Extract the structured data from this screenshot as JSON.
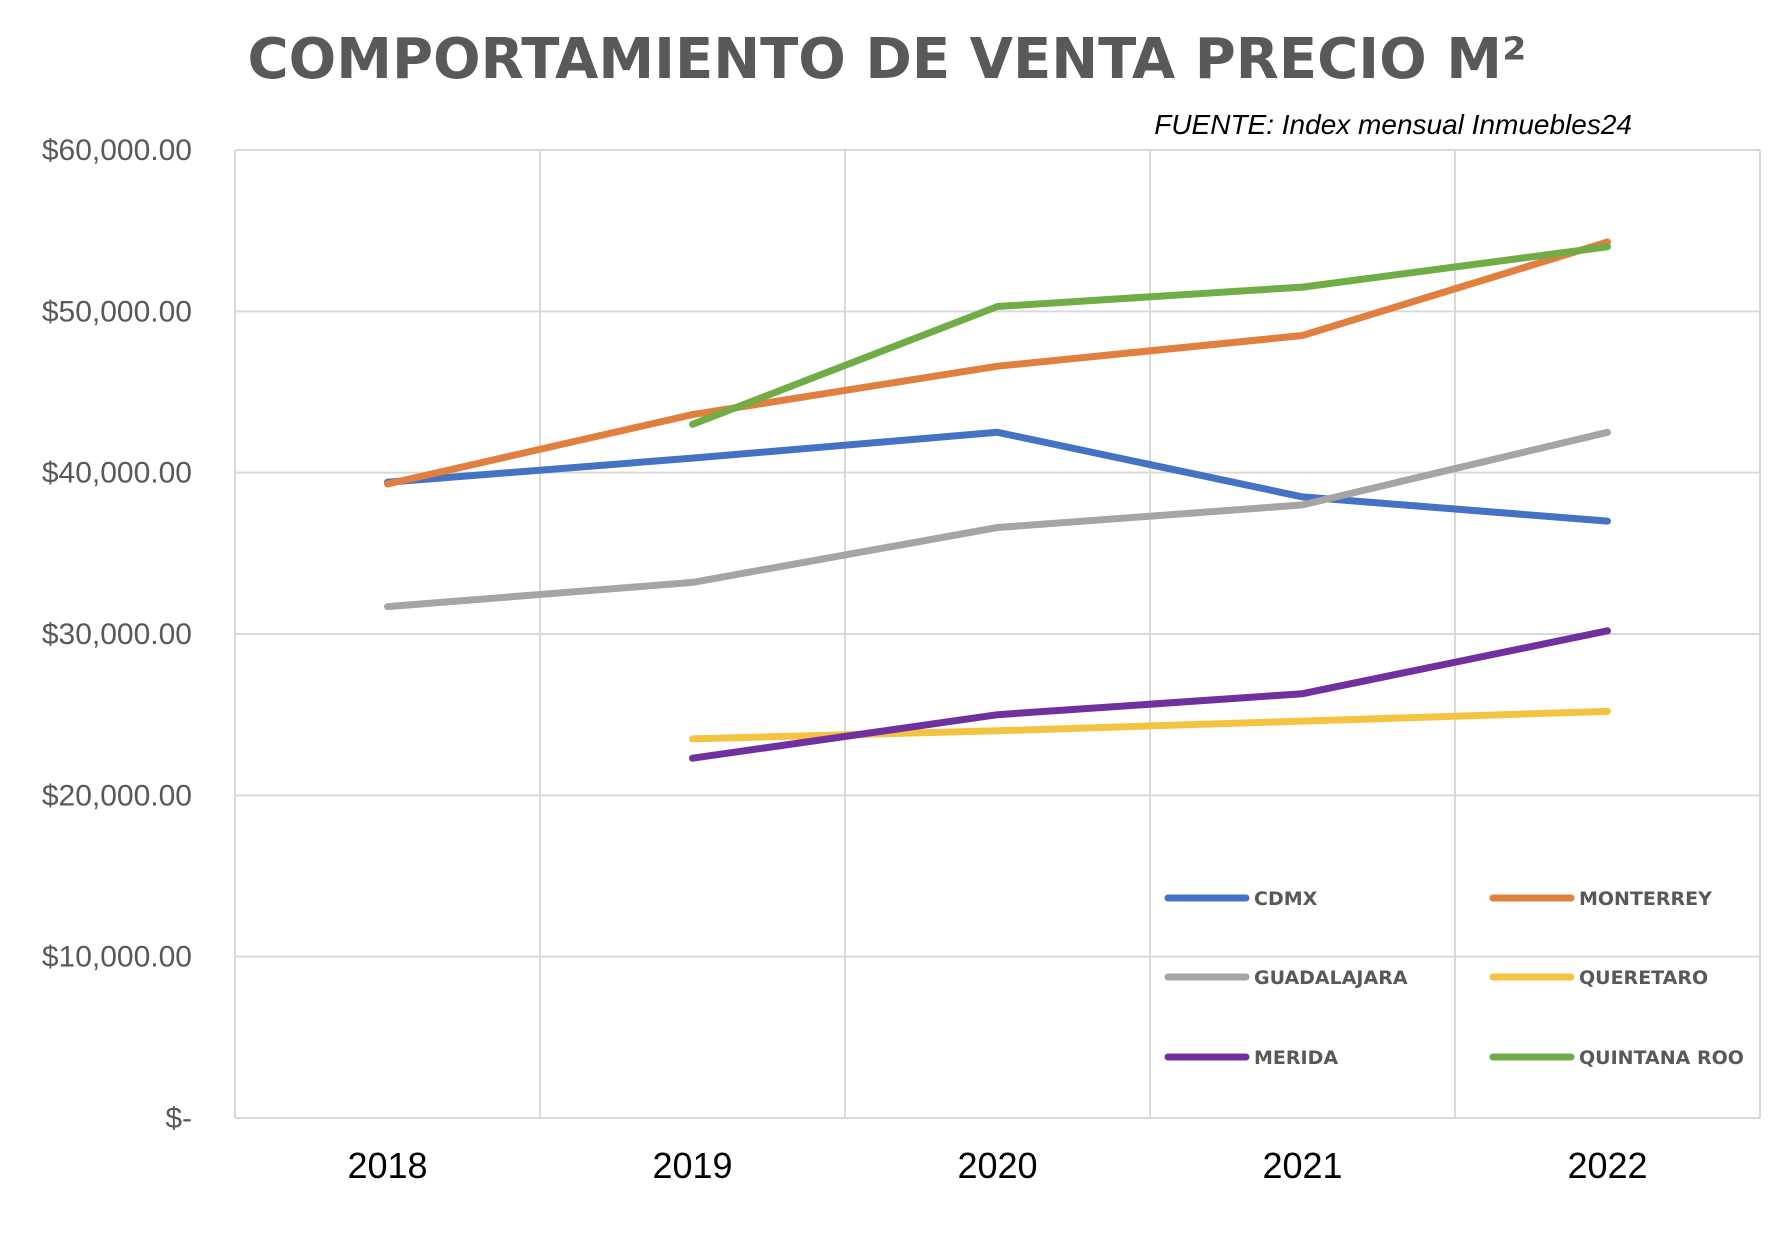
{
  "chart_data": {
    "type": "line",
    "title": "COMPORTAMIENTO DE VENTA PRECIO M²",
    "source": "FUENTE: Index mensual Inmuebles24",
    "categories": [
      "2018",
      "2019",
      "2020",
      "2021",
      "2022"
    ],
    "ylim": [
      0,
      60000
    ],
    "yticks": [
      {
        "value": 0,
        "label": "$-"
      },
      {
        "value": 10000,
        "label": "$10,000.00"
      },
      {
        "value": 20000,
        "label": "$20,000.00"
      },
      {
        "value": 30000,
        "label": "$30,000.00"
      },
      {
        "value": 40000,
        "label": "$40,000.00"
      },
      {
        "value": 50000,
        "label": "$50,000.00"
      },
      {
        "value": 60000,
        "label": "$60,000.00"
      }
    ],
    "grid": true,
    "legend_position": "bottom-right",
    "series": [
      {
        "name": "CDMX",
        "color": "#4472c4",
        "values": [
          39400,
          40900,
          42500,
          38500,
          37000
        ]
      },
      {
        "name": "MONTERREY",
        "color": "#e07f3e",
        "values": [
          39300,
          43600,
          46600,
          48500,
          54300
        ]
      },
      {
        "name": "GUADALAJARA",
        "color": "#a5a5a5",
        "values": [
          31700,
          33200,
          36600,
          38000,
          42500
        ]
      },
      {
        "name": "QUERETARO",
        "color": "#f5c342",
        "values": [
          null,
          23500,
          24000,
          24600,
          25200
        ]
      },
      {
        "name": "MERIDA",
        "color": "#7030a0",
        "values": [
          null,
          22300,
          25000,
          26300,
          30200
        ]
      },
      {
        "name": "QUINTANA ROO",
        "color": "#70ad47",
        "values": [
          null,
          43000,
          50300,
          51500,
          54000
        ]
      }
    ]
  }
}
